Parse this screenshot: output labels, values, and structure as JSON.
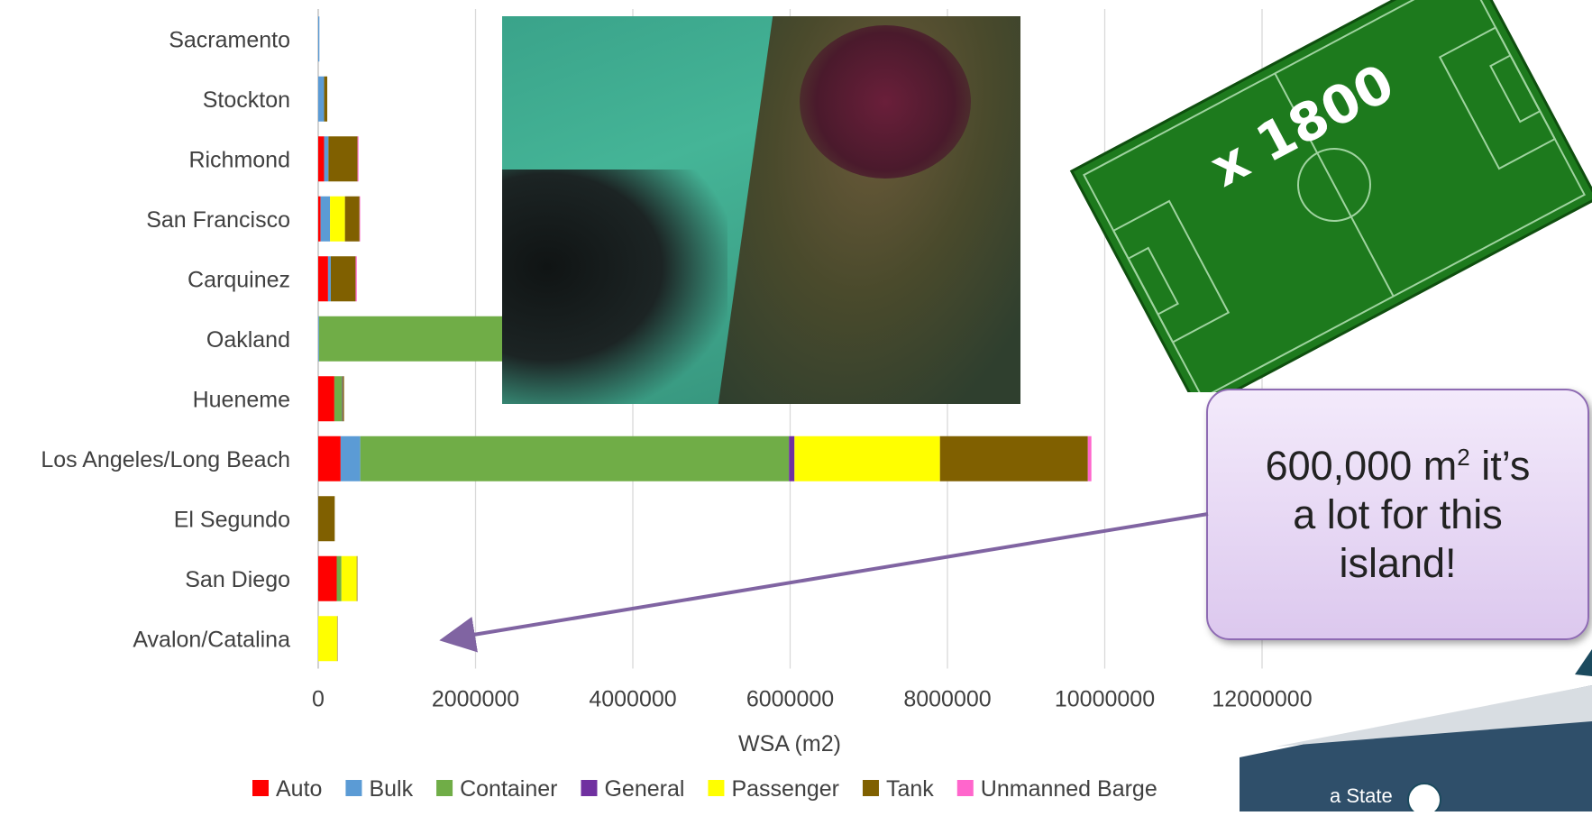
{
  "chart_data": {
    "type": "bar",
    "orientation": "horizontal",
    "stacked": true,
    "categories": [
      "Sacramento",
      "Stockton",
      "Richmond",
      "San Francisco",
      "Carquinez",
      "Oakland",
      "Hueneme",
      "Los Angeles/Long Beach",
      "El Segundo",
      "San Diego",
      "Avalon/Catalina"
    ],
    "series": [
      {
        "name": "Auto",
        "color": "#ff0000",
        "values": [
          0,
          0,
          75000,
          30000,
          125000,
          0,
          205000,
          285000,
          0,
          235000,
          0
        ]
      },
      {
        "name": "Bulk",
        "color": "#5b9bd5",
        "values": [
          15000,
          75000,
          55000,
          120000,
          35000,
          10000,
          0,
          250000,
          0,
          0,
          0
        ]
      },
      {
        "name": "Container",
        "color": "#70ad47",
        "values": [
          0,
          0,
          0,
          0,
          0,
          8500000,
          100000,
          5450000,
          0,
          60000,
          0
        ]
      },
      {
        "name": "General",
        "color": "#7030a0",
        "values": [
          0,
          0,
          0,
          0,
          0,
          0,
          8000,
          70000,
          0,
          0,
          0
        ]
      },
      {
        "name": "Passenger",
        "color": "#ffff00",
        "values": [
          0,
          0,
          0,
          190000,
          0,
          0,
          0,
          1850000,
          0,
          195000,
          240000
        ]
      },
      {
        "name": "Tank",
        "color": "#806000",
        "values": [
          0,
          40000,
          370000,
          185000,
          315000,
          0,
          15000,
          1880000,
          210000,
          8000,
          5000
        ]
      },
      {
        "name": "Unmanned Barge",
        "color": "#ff66cc",
        "values": [
          0,
          0,
          12000,
          8000,
          15000,
          0,
          0,
          45000,
          0,
          0,
          0
        ]
      }
    ],
    "xlabel": "WSA (m2)",
    "ylabel": "",
    "xlim": [
      0,
      12000000
    ],
    "xticks": [
      0,
      2000000,
      4000000,
      6000000,
      8000000,
      10000000,
      12000000
    ],
    "xtick_labels": [
      "0",
      "2000000",
      "4000000",
      "6000000",
      "8000000",
      "10000000",
      "12000000"
    ],
    "grid": "vertical",
    "legend": "bottom"
  },
  "overlays": {
    "field_multiplier": "x 1800",
    "callout": {
      "line1_prefix": "600,000 m",
      "line1_sup": "2",
      "line1_suffix": " it’s",
      "line2": "a lot for this",
      "line3": "island!"
    },
    "corner_text": "a State"
  }
}
